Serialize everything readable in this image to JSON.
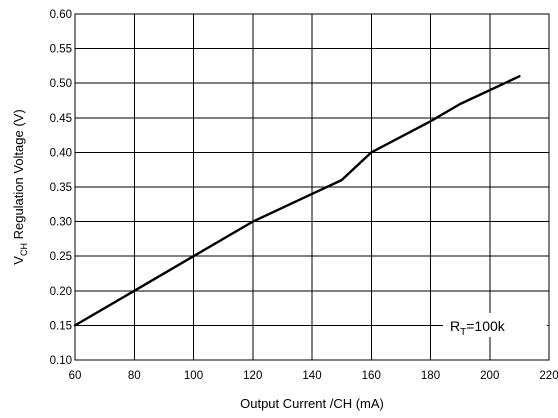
{
  "chart_data": {
    "type": "line",
    "xlabel": "Output Current /CH (mA)",
    "ylabel": {
      "main": "V",
      "subscript": "CH",
      "rest": " Regulation Voltage (V)"
    },
    "xlim": [
      60,
      220
    ],
    "ylim": [
      0.1,
      0.6
    ],
    "x_ticks": [
      "60",
      "80",
      "100",
      "120",
      "140",
      "160",
      "180",
      "200",
      "220"
    ],
    "y_ticks": [
      "0.10",
      "0.15",
      "0.20",
      "0.25",
      "0.30",
      "0.35",
      "0.40",
      "0.45",
      "0.50",
      "0.55",
      "0.60"
    ],
    "grid": true,
    "series": [
      {
        "x": [
          60,
          80,
          100,
          120,
          140,
          150,
          160,
          180,
          190,
          210
        ],
        "y": [
          0.15,
          0.2,
          0.25,
          0.3,
          0.34,
          0.36,
          0.4,
          0.445,
          0.47,
          0.51
        ]
      }
    ],
    "annotation": {
      "main": "R",
      "subscript": "T",
      "rest": "=100k",
      "anchor_x": 200,
      "anchor_y": 0.15
    }
  }
}
